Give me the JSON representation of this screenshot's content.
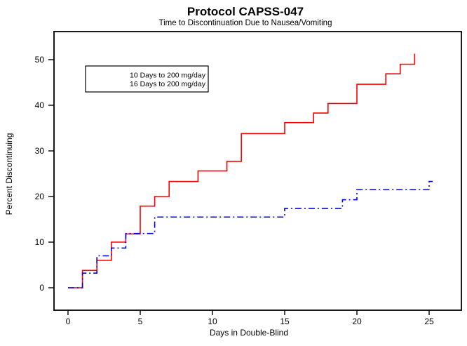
{
  "chart_data": {
    "type": "line",
    "subtype": "step-survival",
    "title": "Protocol CAPSS-047",
    "subtitle": "Time to Discontinuation Due to Nausea/Vomiting",
    "xlabel": "Days in Double-Blind",
    "ylabel": "Percent Discontinuing",
    "xlim": [
      0,
      25
    ],
    "ylim": [
      0,
      50
    ],
    "xticks": [
      0,
      5,
      10,
      15,
      20,
      25
    ],
    "yticks": [
      0,
      10,
      20,
      30,
      40,
      50
    ],
    "grid": false,
    "legend_position": "upper-left-inside",
    "frame": "full-box",
    "series": [
      {
        "name": "10 Days to 200 mg/day",
        "color": "#ff0000",
        "style": "solid",
        "trailing_dash": false,
        "points": [
          [
            0,
            0
          ],
          [
            1,
            3.8
          ],
          [
            2,
            6.0
          ],
          [
            3,
            10.0
          ],
          [
            4,
            11.8
          ],
          [
            5,
            17.9
          ],
          [
            6,
            20.0
          ],
          [
            7,
            23.3
          ],
          [
            9,
            25.6
          ],
          [
            11,
            27.7
          ],
          [
            12,
            33.8
          ],
          [
            15,
            36.2
          ],
          [
            17,
            38.3
          ],
          [
            18,
            40.4
          ],
          [
            20,
            44.6
          ],
          [
            22,
            46.9
          ],
          [
            23,
            49.0
          ],
          [
            24,
            51.3
          ]
        ]
      },
      {
        "name": "16 Days to 200 mg/day",
        "color": "#0000dd",
        "style": "dash-dot",
        "trailing_dash": true,
        "points": [
          [
            0,
            0
          ],
          [
            1,
            3.2
          ],
          [
            2,
            7.0
          ],
          [
            3,
            8.7
          ],
          [
            4,
            11.9
          ],
          [
            6,
            15.5
          ],
          [
            15,
            17.4
          ],
          [
            19,
            19.3
          ],
          [
            20,
            21.5
          ],
          [
            25,
            23.3
          ]
        ]
      }
    ]
  }
}
